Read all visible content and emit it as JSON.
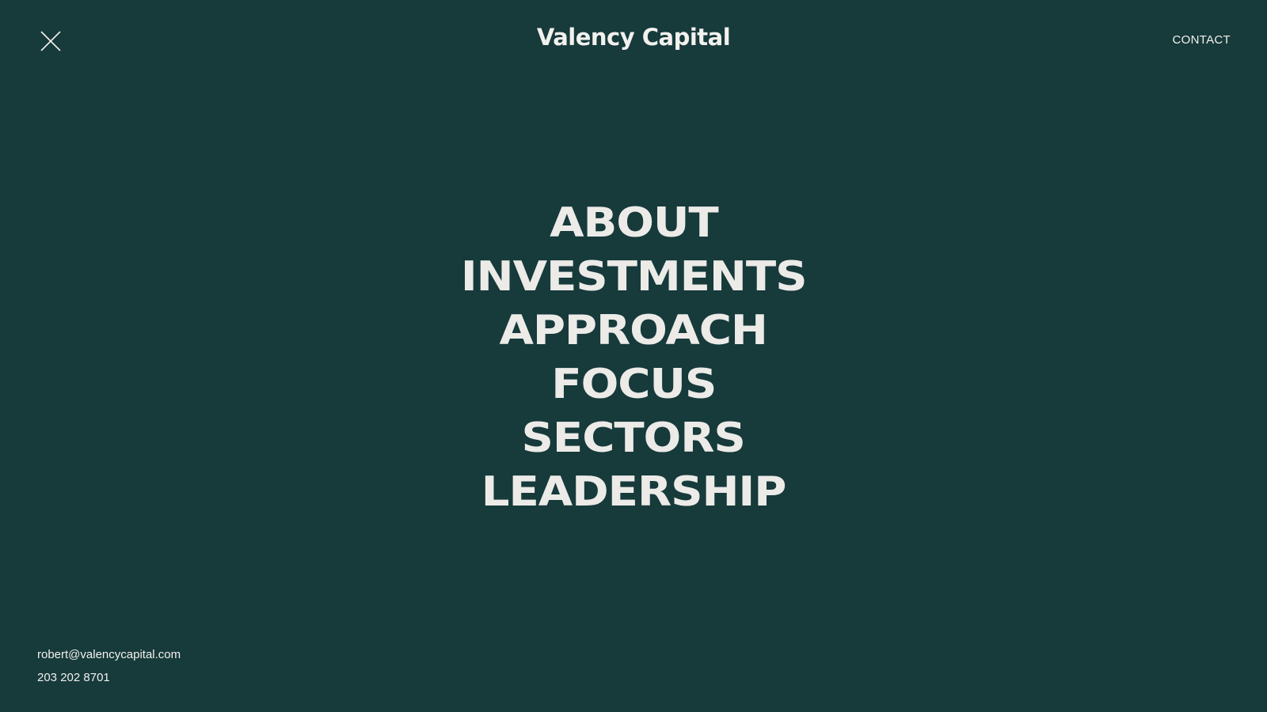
{
  "header": {
    "close_icon": "close-icon",
    "brand": "Valency Capital",
    "contact_label": "CONTACT"
  },
  "menu": {
    "items": [
      {
        "label": "ABOUT"
      },
      {
        "label": "INVESTMENTS"
      },
      {
        "label": "APPROACH"
      },
      {
        "label": "FOCUS"
      },
      {
        "label": "SECTORS"
      },
      {
        "label": "LEADERSHIP"
      }
    ]
  },
  "footer": {
    "email": "robert@valencycapital.com",
    "phone": "203 202 8701"
  },
  "colors": {
    "background": "#173a3b",
    "text": "#ecebe8"
  }
}
